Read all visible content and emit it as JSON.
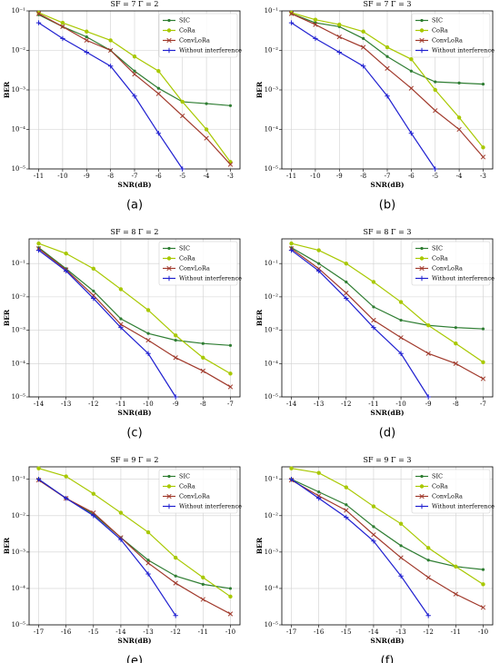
{
  "chart_data": [
    {
      "type": "line",
      "title": "SF = 7  Γ = 2",
      "caption": "(a)",
      "xlabel": "SNR(dB)",
      "ylabel": "BER",
      "yscale": "log",
      "grid": true,
      "legend": "upper right",
      "x": [
        -11,
        -10,
        -9,
        -8,
        -7,
        -6,
        -5,
        -4,
        -3
      ],
      "xlim": [
        -11.4,
        -2.6
      ],
      "xticks": [
        -11,
        -10,
        -9,
        -8,
        -7,
        -6,
        -5,
        -4,
        -3
      ],
      "ylim": [
        1e-05,
        0.1
      ],
      "yticks": [
        {
          "value": 1e-05,
          "label": "10⁻⁵"
        },
        {
          "value": 0.0001,
          "label": "10⁻⁴"
        },
        {
          "value": 0.001,
          "label": "10⁻³"
        },
        {
          "value": 0.01,
          "label": "10⁻²"
        },
        {
          "value": 0.1,
          "label": "10⁻¹"
        }
      ],
      "series": [
        {
          "name": "SIC",
          "color": "#2e7d32",
          "marker": "dot",
          "values": [
            0.08,
            0.04,
            0.022,
            0.01,
            0.003,
            0.0011,
            0.0005,
            0.00045,
            0.0004
          ]
        },
        {
          "name": "CoRa",
          "color": "#a8c800",
          "marker": "circle",
          "values": [
            0.09,
            0.05,
            0.03,
            0.018,
            0.007,
            0.003,
            0.0005,
            0.0001,
            1.5e-05
          ]
        },
        {
          "name": "ConvLoRa",
          "color": "#a0392b",
          "marker": "x",
          "values": [
            0.085,
            0.04,
            0.018,
            0.01,
            0.0025,
            0.0008,
            0.00022,
            6e-05,
            1.3e-05
          ]
        },
        {
          "name": "Without interference",
          "color": "#1f1fd0",
          "marker": "plus",
          "values": [
            0.05,
            0.02,
            0.009,
            0.004,
            0.0007,
            8e-05,
            1e-05,
            null,
            null
          ]
        }
      ]
    },
    {
      "type": "line",
      "title": "SF = 7  Γ = 3",
      "caption": "(b)",
      "xlabel": "SNR(dB)",
      "ylabel": "BER",
      "yscale": "log",
      "grid": true,
      "legend": "upper right",
      "x": [
        -11,
        -10,
        -9,
        -8,
        -7,
        -6,
        -5,
        -4,
        -3
      ],
      "xlim": [
        -11.4,
        -2.6
      ],
      "xticks": [
        -11,
        -10,
        -9,
        -8,
        -7,
        -6,
        -5,
        -4,
        -3
      ],
      "ylim": [
        1e-05,
        0.1
      ],
      "yticks": [
        {
          "value": 1e-05,
          "label": "10⁻⁵"
        },
        {
          "value": 0.0001,
          "label": "10⁻⁴"
        },
        {
          "value": 0.001,
          "label": "10⁻³"
        },
        {
          "value": 0.01,
          "label": "10⁻²"
        },
        {
          "value": 0.1,
          "label": "10⁻¹"
        }
      ],
      "series": [
        {
          "name": "SIC",
          "color": "#2e7d32",
          "marker": "dot",
          "values": [
            0.085,
            0.05,
            0.04,
            0.02,
            0.007,
            0.003,
            0.0016,
            0.0015,
            0.0014
          ]
        },
        {
          "name": "CoRa",
          "color": "#a8c800",
          "marker": "circle",
          "values": [
            0.09,
            0.06,
            0.045,
            0.03,
            0.012,
            0.006,
            0.001,
            0.0002,
            3.5e-05
          ]
        },
        {
          "name": "ConvLoRa",
          "color": "#a0392b",
          "marker": "x",
          "values": [
            0.085,
            0.045,
            0.022,
            0.012,
            0.0035,
            0.0011,
            0.0003,
            0.0001,
            2e-05
          ]
        },
        {
          "name": "Without interference",
          "color": "#1f1fd0",
          "marker": "plus",
          "values": [
            0.05,
            0.02,
            0.009,
            0.004,
            0.0007,
            8e-05,
            1e-05,
            null,
            null
          ]
        }
      ]
    },
    {
      "type": "line",
      "title": "SF = 8  Γ = 2",
      "caption": "(c)",
      "xlabel": "SNR(dB)",
      "ylabel": "BER",
      "yscale": "log",
      "grid": true,
      "legend": "upper right",
      "x": [
        -14,
        -13,
        -12,
        -11,
        -10,
        -9,
        -8,
        -7
      ],
      "xlim": [
        -14.35,
        -6.65
      ],
      "xticks": [
        -14,
        -13,
        -12,
        -11,
        -10,
        -9,
        -8,
        -7
      ],
      "ylim": [
        1e-05,
        0.55
      ],
      "yticks": [
        {
          "value": 1e-05,
          "label": "10⁻⁵"
        },
        {
          "value": 0.0001,
          "label": "10⁻⁴"
        },
        {
          "value": 0.001,
          "label": "10⁻³"
        },
        {
          "value": 0.01,
          "label": "10⁻²"
        },
        {
          "value": 0.1,
          "label": "10⁻¹"
        }
      ],
      "series": [
        {
          "name": "SIC",
          "color": "#2e7d32",
          "marker": "dot",
          "values": [
            0.3,
            0.07,
            0.015,
            0.0022,
            0.0008,
            0.0005,
            0.0004,
            0.00035
          ]
        },
        {
          "name": "CoRa",
          "color": "#a8c800",
          "marker": "circle",
          "values": [
            0.4,
            0.2,
            0.07,
            0.017,
            0.004,
            0.0007,
            0.00015,
            5e-05
          ]
        },
        {
          "name": "ConvLoRa",
          "color": "#a0392b",
          "marker": "x",
          "values": [
            0.28,
            0.065,
            0.011,
            0.0015,
            0.0005,
            0.00015,
            6e-05,
            2e-05
          ]
        },
        {
          "name": "Without interference",
          "color": "#1f1fd0",
          "marker": "plus",
          "values": [
            0.25,
            0.06,
            0.009,
            0.0012,
            0.0002,
            1e-05,
            null,
            null
          ]
        }
      ]
    },
    {
      "type": "line",
      "title": "SF = 8  Γ = 3",
      "caption": "(d)",
      "xlabel": "SNR(dB)",
      "ylabel": "BER",
      "yscale": "log",
      "grid": true,
      "legend": "upper right",
      "x": [
        -14,
        -13,
        -12,
        -11,
        -10,
        -9,
        -8,
        -7
      ],
      "xlim": [
        -14.35,
        -6.65
      ],
      "xticks": [
        -14,
        -13,
        -12,
        -11,
        -10,
        -9,
        -8,
        -7
      ],
      "ylim": [
        1e-05,
        0.55
      ],
      "yticks": [
        {
          "value": 1e-05,
          "label": "10⁻⁵"
        },
        {
          "value": 0.0001,
          "label": "10⁻⁴"
        },
        {
          "value": 0.001,
          "label": "10⁻³"
        },
        {
          "value": 0.01,
          "label": "10⁻²"
        },
        {
          "value": 0.1,
          "label": "10⁻¹"
        }
      ],
      "series": [
        {
          "name": "SIC",
          "color": "#2e7d32",
          "marker": "dot",
          "values": [
            0.3,
            0.1,
            0.028,
            0.005,
            0.002,
            0.0014,
            0.0012,
            0.0011
          ]
        },
        {
          "name": "CoRa",
          "color": "#a8c800",
          "marker": "circle",
          "values": [
            0.4,
            0.25,
            0.1,
            0.028,
            0.007,
            0.0014,
            0.0004,
            0.00011
          ]
        },
        {
          "name": "ConvLoRa",
          "color": "#a0392b",
          "marker": "x",
          "values": [
            0.28,
            0.07,
            0.013,
            0.002,
            0.0006,
            0.0002,
            0.0001,
            3.5e-05
          ]
        },
        {
          "name": "Without interference",
          "color": "#1f1fd0",
          "marker": "plus",
          "values": [
            0.25,
            0.06,
            0.009,
            0.0012,
            0.0002,
            1e-05,
            null,
            null
          ]
        }
      ]
    },
    {
      "type": "line",
      "title": "SF = 9  Γ = 2",
      "caption": "(e)",
      "xlabel": "SNR(dB)",
      "ylabel": "BER",
      "yscale": "log",
      "grid": true,
      "legend": "upper right",
      "x": [
        -17,
        -16,
        -15,
        -14,
        -13,
        -12,
        -11,
        -10
      ],
      "xlim": [
        -17.35,
        -9.65
      ],
      "xticks": [
        -17,
        -16,
        -15,
        -14,
        -13,
        -12,
        -11,
        -10
      ],
      "ylim": [
        1e-05,
        0.22
      ],
      "yticks": [
        {
          "value": 1e-05,
          "label": "10⁻⁵"
        },
        {
          "value": 0.0001,
          "label": "10⁻⁴"
        },
        {
          "value": 0.001,
          "label": "10⁻³"
        },
        {
          "value": 0.01,
          "label": "10⁻²"
        },
        {
          "value": 0.1,
          "label": "10⁻¹"
        }
      ],
      "series": [
        {
          "name": "SIC",
          "color": "#2e7d32",
          "marker": "dot",
          "values": [
            0.1,
            0.03,
            0.011,
            0.0025,
            0.0006,
            0.00022,
            0.00013,
            0.0001
          ]
        },
        {
          "name": "CoRa",
          "color": "#a8c800",
          "marker": "circle",
          "values": [
            0.2,
            0.12,
            0.04,
            0.012,
            0.0035,
            0.0007,
            0.0002,
            6e-05
          ]
        },
        {
          "name": "ConvLoRa",
          "color": "#a0392b",
          "marker": "x",
          "values": [
            0.095,
            0.03,
            0.012,
            0.0025,
            0.0005,
            0.00014,
            5e-05,
            2e-05
          ]
        },
        {
          "name": "Without interference",
          "color": "#1f1fd0",
          "marker": "plus",
          "values": [
            0.1,
            0.03,
            0.01,
            0.0022,
            0.00025,
            1.8e-05,
            null,
            null
          ]
        }
      ]
    },
    {
      "type": "line",
      "title": "SF = 9  Γ = 3",
      "caption": "(f)",
      "xlabel": "SNR(dB)",
      "ylabel": "BER",
      "yscale": "log",
      "grid": true,
      "legend": "upper right",
      "x": [
        -17,
        -16,
        -15,
        -14,
        -13,
        -12,
        -11,
        -10
      ],
      "xlim": [
        -17.35,
        -9.65
      ],
      "xticks": [
        -17,
        -16,
        -15,
        -14,
        -13,
        -12,
        -11,
        -10
      ],
      "ylim": [
        1e-05,
        0.22
      ],
      "yticks": [
        {
          "value": 1e-05,
          "label": "10⁻⁵"
        },
        {
          "value": 0.0001,
          "label": "10⁻⁴"
        },
        {
          "value": 0.001,
          "label": "10⁻³"
        },
        {
          "value": 0.01,
          "label": "10⁻²"
        },
        {
          "value": 0.1,
          "label": "10⁻¹"
        }
      ],
      "series": [
        {
          "name": "SIC",
          "color": "#2e7d32",
          "marker": "dot",
          "values": [
            0.1,
            0.045,
            0.02,
            0.005,
            0.0015,
            0.0006,
            0.0004,
            0.00033
          ]
        },
        {
          "name": "CoRa",
          "color": "#a8c800",
          "marker": "circle",
          "values": [
            0.2,
            0.15,
            0.06,
            0.018,
            0.006,
            0.0013,
            0.0004,
            0.00013
          ]
        },
        {
          "name": "ConvLoRa",
          "color": "#a0392b",
          "marker": "x",
          "values": [
            0.095,
            0.035,
            0.014,
            0.003,
            0.0007,
            0.0002,
            7e-05,
            3e-05
          ]
        },
        {
          "name": "Without interference",
          "color": "#1f1fd0",
          "marker": "plus",
          "values": [
            0.1,
            0.03,
            0.009,
            0.002,
            0.00022,
            1.8e-05,
            null,
            null
          ]
        }
      ]
    }
  ]
}
